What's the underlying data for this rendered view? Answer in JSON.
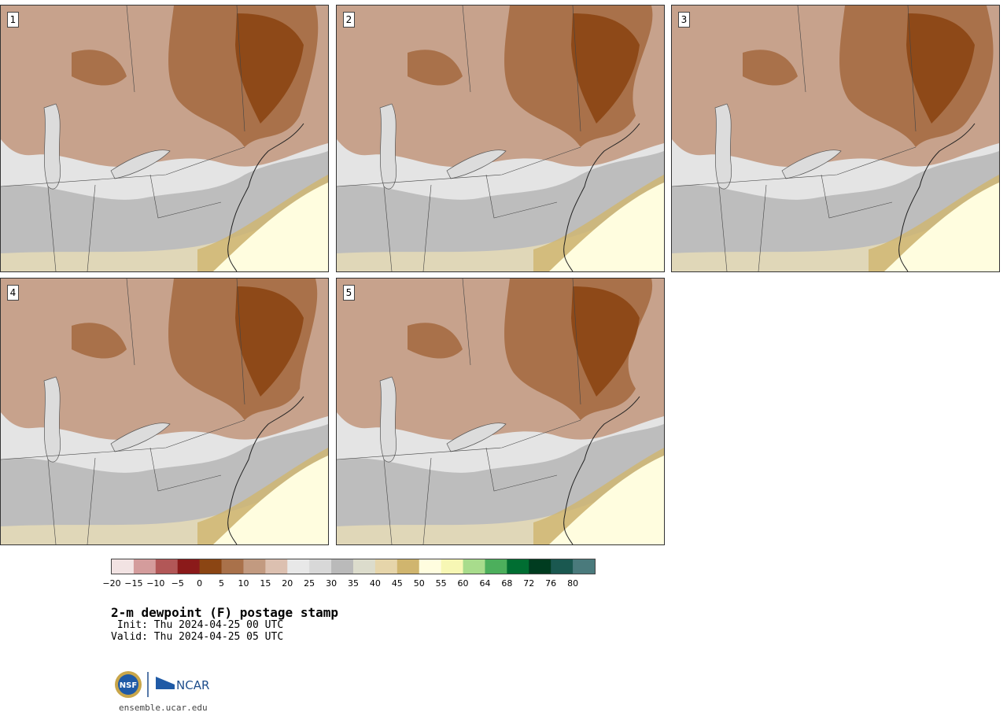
{
  "panels": [
    {
      "label": "1",
      "scale": 1.0
    },
    {
      "label": "2",
      "scale": 0.92
    },
    {
      "label": "3",
      "scale": 1.06
    },
    {
      "label": "4",
      "scale": 0.97
    },
    {
      "label": "5",
      "scale": 0.88
    }
  ],
  "colorbar": {
    "colors": [
      "#f2e3e3",
      "#d49c9c",
      "#b25757",
      "#8b1a1a",
      "#8b4513",
      "#a9714a",
      "#c29a80",
      "#dcc0b0",
      "#e8e8e8",
      "#d8d8d8",
      "#bababa",
      "#dcdccc",
      "#e6d5aa",
      "#d0b56e",
      "#fffddf",
      "#f7f7b4",
      "#a8dc8c",
      "#4caf5c",
      "#006e32",
      "#003c20",
      "#1a5850",
      "#4a7a7c"
    ],
    "tick_labels": [
      "−20",
      "−15",
      "−10",
      "−5",
      "0",
      "5",
      "10",
      "15",
      "20",
      "25",
      "30",
      "35",
      "40",
      "45",
      "50",
      "55",
      "60",
      "64",
      "68",
      "72",
      "76",
      "80"
    ]
  },
  "title": "2-m dewpoint (F) postage stamp",
  "init": " Init: Thu 2024-04-25 00 UTC",
  "valid": "Valid: Thu 2024-04-25 05 UTC",
  "footer_url": "ensemble.ucar.edu",
  "logos": {
    "nsf": "NSF",
    "ncar": "NCAR"
  }
}
